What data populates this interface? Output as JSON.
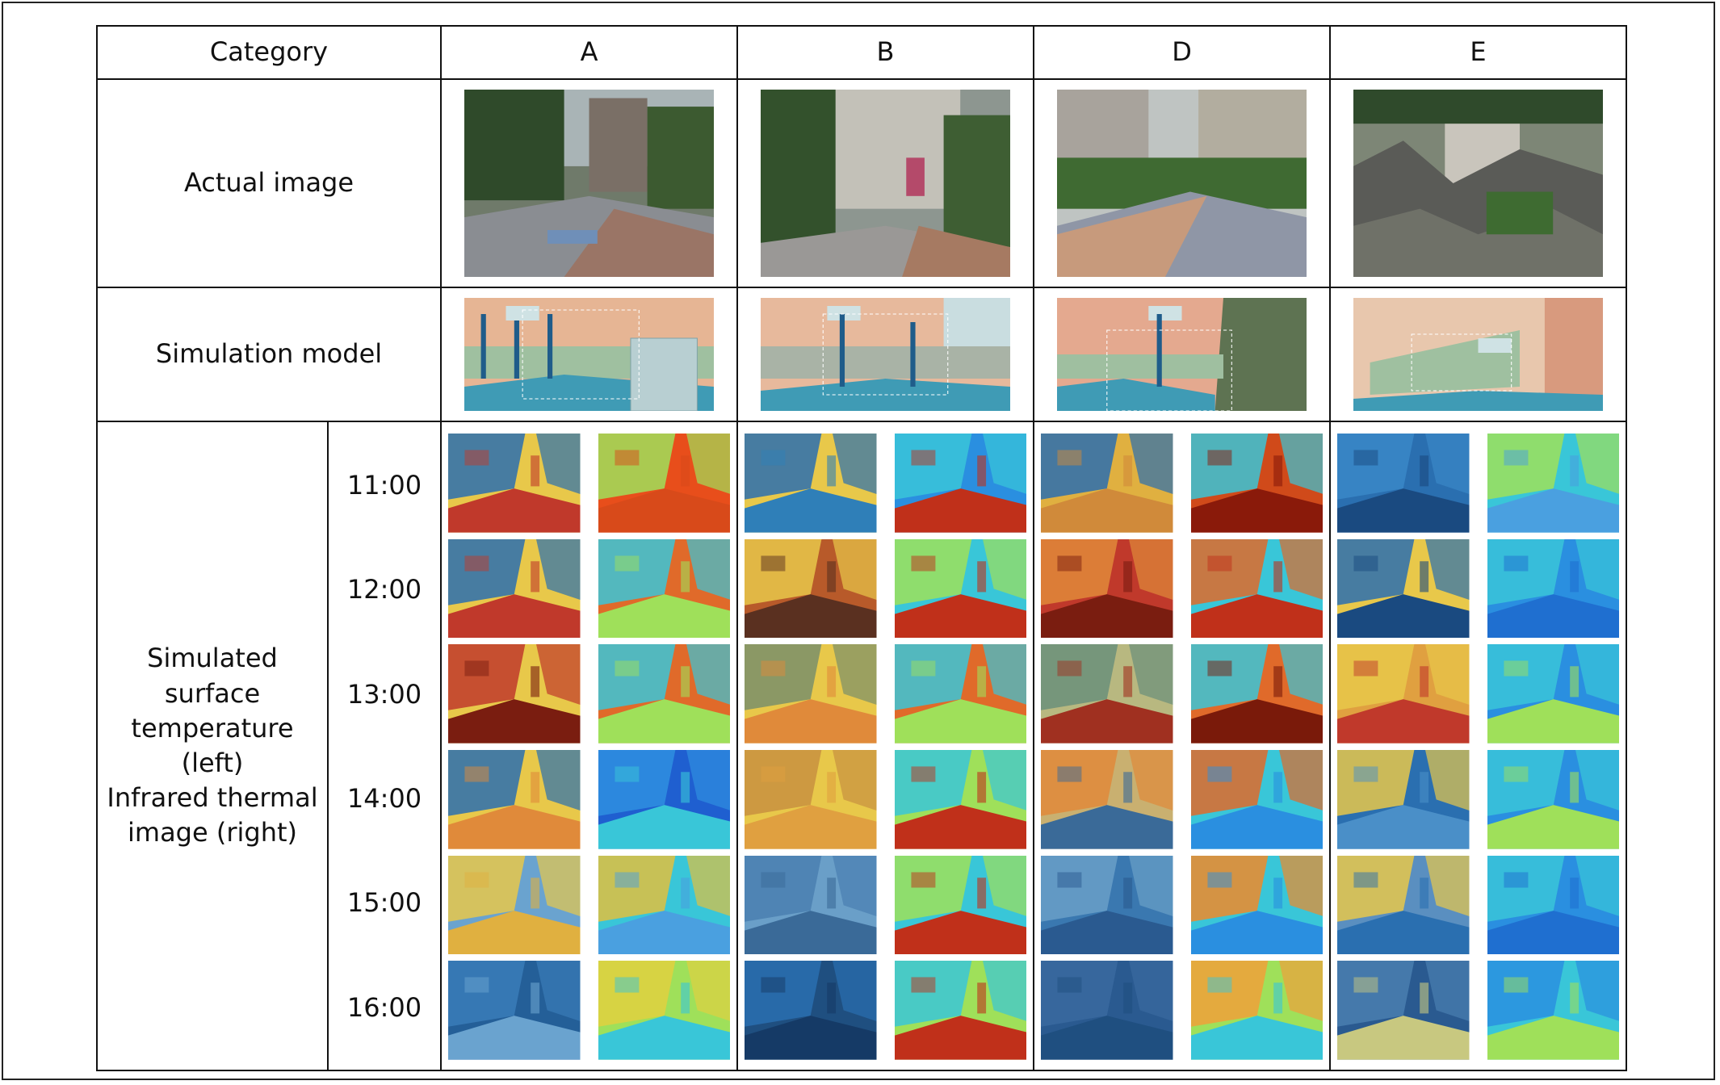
{
  "table": {
    "header": {
      "category": "Category",
      "columns": [
        "A",
        "B",
        "D",
        "E"
      ]
    },
    "rows": {
      "actual_image": "Actual image",
      "simulation_model": "Simulation model",
      "temperature_label_line1": "Simulated surface",
      "temperature_label_line2": "temperature (left)",
      "temperature_label_line3": "Infrared thermal",
      "temperature_label_line4": "image (right)"
    },
    "times": [
      "11:00",
      "12:00",
      "13:00",
      "14:00",
      "15:00",
      "16:00"
    ]
  },
  "colors": {
    "sim_blue": "#2a6fb0",
    "sim_yellow": "#e8c84a",
    "sim_red": "#c0392b",
    "ir_cyan": "#39c6d8",
    "ir_green": "#9fe05a",
    "ir_red": "#e84e1b",
    "model_teal": "#3f9bb5",
    "model_peach": "#e9b89a"
  }
}
